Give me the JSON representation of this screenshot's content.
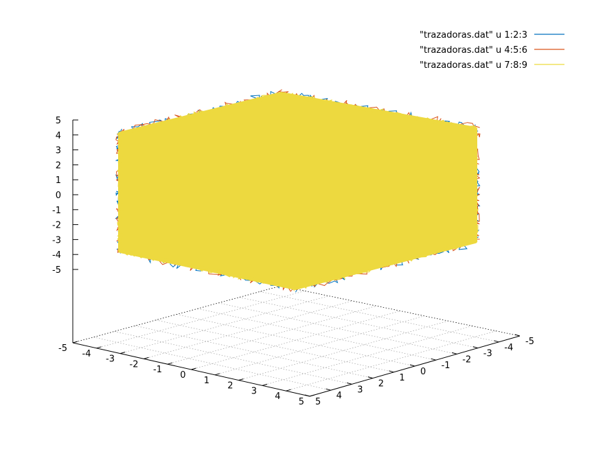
{
  "chart_data": {
    "type": "scatter",
    "subtype": "3d-line-cloud",
    "title": "",
    "legend_position": "top-right",
    "series": [
      {
        "name": "\"trazadoras.dat\" u 1:2:3",
        "color": "#0072bd",
        "x_range": [
          -5,
          5
        ],
        "y_range": [
          -5,
          5
        ],
        "z_range": [
          -5,
          5
        ]
      },
      {
        "name": "\"trazadoras.dat\" u 4:5:6",
        "color": "#d95319",
        "x_range": [
          -5,
          5
        ],
        "y_range": [
          -5,
          5
        ],
        "z_range": [
          -5,
          5
        ]
      },
      {
        "name": "\"trazadoras.dat\" u 7:8:9",
        "color": "#edd93f",
        "x_range": [
          -5,
          5
        ],
        "y_range": [
          -5,
          5
        ],
        "z_range": [
          -5,
          5
        ]
      }
    ],
    "xlim": [
      -5,
      5
    ],
    "ylim": [
      -5,
      5
    ],
    "zlim": [
      -5,
      5
    ],
    "x_ticks": [
      "-5",
      "-4",
      "-3",
      "-2",
      "-1",
      "0",
      "1",
      "2",
      "3",
      "4",
      "5"
    ],
    "y_ticks": [
      "-5",
      "-4",
      "-3",
      "-2",
      "-1",
      "0",
      "1",
      "2",
      "3",
      "4",
      "5"
    ],
    "z_ticks": [
      "5",
      "4",
      "3",
      "2",
      "1",
      "0",
      "-1",
      "-2",
      "-3",
      "-4",
      "-5"
    ],
    "grid": true
  }
}
